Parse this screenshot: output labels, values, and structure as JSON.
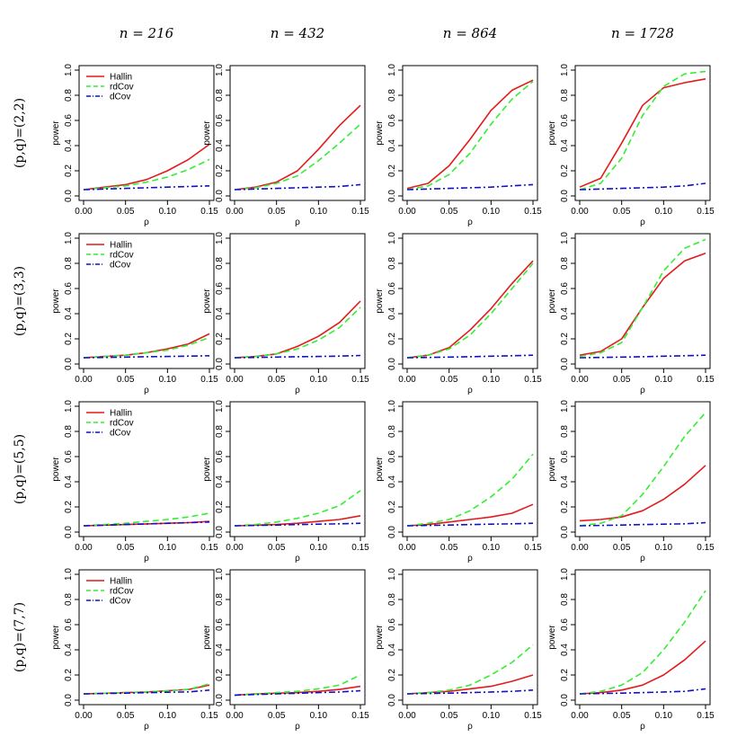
{
  "column_headers": [
    "n = 216",
    "n = 432",
    "n = 864",
    "n = 1728"
  ],
  "row_headers": [
    "(p,q)=(2,2)",
    "(p,q)=(3,3)",
    "(p,q)=(5,5)",
    "(p,q)=(7,7)"
  ],
  "axes": {
    "xlabel": "ρ",
    "ylabel": "power",
    "xlim": [
      0,
      0.15
    ],
    "ylim": [
      0,
      1
    ],
    "xticks": [
      0.0,
      0.05,
      0.1,
      0.15
    ],
    "xtick_labels": [
      "0.00",
      "0.05",
      "0.10",
      "0.15"
    ],
    "yticks": [
      0.0,
      0.2,
      0.4,
      0.6,
      0.8,
      1.0
    ],
    "ytick_labels": [
      "0.0",
      "0.2",
      "0.4",
      "0.6",
      "0.8",
      "1.0"
    ]
  },
  "series_styles": [
    {
      "name": "Hallin",
      "color": "#e31a1c",
      "dash": "solid"
    },
    {
      "name": "rdCov",
      "color": "#33ee33",
      "dash": "dashed"
    },
    {
      "name": "dCov",
      "color": "#1111cc",
      "dash": "dotdash"
    }
  ],
  "chart_data": [
    {
      "type": "line",
      "row": 0,
      "col": 0,
      "legend": true,
      "x": [
        0,
        0.025,
        0.05,
        0.075,
        0.1,
        0.125,
        0.15
      ],
      "series": [
        {
          "name": "Hallin",
          "values": [
            0.05,
            0.07,
            0.09,
            0.13,
            0.2,
            0.29,
            0.41
          ]
        },
        {
          "name": "rdCov",
          "values": [
            0.05,
            0.065,
            0.08,
            0.11,
            0.15,
            0.21,
            0.29
          ]
        },
        {
          "name": "dCov",
          "values": [
            0.05,
            0.055,
            0.06,
            0.065,
            0.07,
            0.075,
            0.08
          ]
        }
      ]
    },
    {
      "type": "line",
      "row": 0,
      "col": 1,
      "legend": false,
      "x": [
        0,
        0.025,
        0.05,
        0.075,
        0.1,
        0.125,
        0.15
      ],
      "series": [
        {
          "name": "Hallin",
          "values": [
            0.05,
            0.07,
            0.11,
            0.2,
            0.37,
            0.56,
            0.72
          ]
        },
        {
          "name": "rdCov",
          "values": [
            0.05,
            0.065,
            0.1,
            0.16,
            0.28,
            0.42,
            0.57
          ]
        },
        {
          "name": "dCov",
          "values": [
            0.05,
            0.055,
            0.06,
            0.065,
            0.07,
            0.075,
            0.09
          ]
        }
      ]
    },
    {
      "type": "line",
      "row": 0,
      "col": 2,
      "legend": false,
      "x": [
        0,
        0.025,
        0.05,
        0.075,
        0.1,
        0.125,
        0.15
      ],
      "series": [
        {
          "name": "Hallin",
          "values": [
            0.06,
            0.1,
            0.24,
            0.45,
            0.68,
            0.84,
            0.92
          ]
        },
        {
          "name": "rdCov",
          "values": [
            0.05,
            0.08,
            0.17,
            0.34,
            0.57,
            0.77,
            0.91
          ]
        },
        {
          "name": "dCov",
          "values": [
            0.05,
            0.055,
            0.06,
            0.065,
            0.07,
            0.08,
            0.09
          ]
        }
      ]
    },
    {
      "type": "line",
      "row": 0,
      "col": 3,
      "legend": false,
      "x": [
        0,
        0.025,
        0.05,
        0.075,
        0.1,
        0.125,
        0.15
      ],
      "series": [
        {
          "name": "Hallin",
          "values": [
            0.07,
            0.14,
            0.42,
            0.72,
            0.86,
            0.9,
            0.93
          ]
        },
        {
          "name": "rdCov",
          "values": [
            0.05,
            0.1,
            0.3,
            0.64,
            0.87,
            0.97,
            0.99
          ]
        },
        {
          "name": "dCov",
          "values": [
            0.05,
            0.055,
            0.06,
            0.065,
            0.07,
            0.08,
            0.1
          ]
        }
      ]
    },
    {
      "type": "line",
      "row": 1,
      "col": 0,
      "legend": true,
      "x": [
        0,
        0.025,
        0.05,
        0.075,
        0.1,
        0.125,
        0.15
      ],
      "series": [
        {
          "name": "Hallin",
          "values": [
            0.05,
            0.06,
            0.07,
            0.09,
            0.12,
            0.16,
            0.24
          ]
        },
        {
          "name": "rdCov",
          "values": [
            0.05,
            0.06,
            0.07,
            0.09,
            0.11,
            0.15,
            0.21
          ]
        },
        {
          "name": "dCov",
          "values": [
            0.05,
            0.052,
            0.055,
            0.058,
            0.06,
            0.063,
            0.066
          ]
        }
      ]
    },
    {
      "type": "line",
      "row": 1,
      "col": 1,
      "legend": false,
      "x": [
        0,
        0.025,
        0.05,
        0.075,
        0.1,
        0.125,
        0.15
      ],
      "series": [
        {
          "name": "Hallin",
          "values": [
            0.05,
            0.06,
            0.08,
            0.14,
            0.22,
            0.33,
            0.5
          ]
        },
        {
          "name": "rdCov",
          "values": [
            0.05,
            0.06,
            0.08,
            0.12,
            0.19,
            0.29,
            0.45
          ]
        },
        {
          "name": "dCov",
          "values": [
            0.05,
            0.052,
            0.055,
            0.058,
            0.06,
            0.063,
            0.068
          ]
        }
      ]
    },
    {
      "type": "line",
      "row": 1,
      "col": 2,
      "legend": false,
      "x": [
        0,
        0.025,
        0.05,
        0.075,
        0.1,
        0.125,
        0.15
      ],
      "series": [
        {
          "name": "Hallin",
          "values": [
            0.05,
            0.07,
            0.13,
            0.27,
            0.44,
            0.64,
            0.82
          ]
        },
        {
          "name": "rdCov",
          "values": [
            0.05,
            0.07,
            0.12,
            0.23,
            0.4,
            0.6,
            0.8
          ]
        },
        {
          "name": "dCov",
          "values": [
            0.05,
            0.052,
            0.055,
            0.058,
            0.062,
            0.066,
            0.07
          ]
        }
      ]
    },
    {
      "type": "line",
      "row": 1,
      "col": 3,
      "legend": false,
      "x": [
        0,
        0.025,
        0.05,
        0.075,
        0.1,
        0.125,
        0.15
      ],
      "series": [
        {
          "name": "Hallin",
          "values": [
            0.07,
            0.1,
            0.2,
            0.45,
            0.68,
            0.82,
            0.88
          ]
        },
        {
          "name": "rdCov",
          "values": [
            0.06,
            0.09,
            0.17,
            0.45,
            0.74,
            0.92,
            0.99
          ]
        },
        {
          "name": "dCov",
          "values": [
            0.05,
            0.052,
            0.055,
            0.058,
            0.062,
            0.066,
            0.07
          ]
        }
      ]
    },
    {
      "type": "line",
      "row": 2,
      "col": 0,
      "legend": true,
      "x": [
        0,
        0.025,
        0.05,
        0.075,
        0.1,
        0.125,
        0.15
      ],
      "series": [
        {
          "name": "Hallin",
          "values": [
            0.05,
            0.055,
            0.06,
            0.065,
            0.07,
            0.075,
            0.085
          ]
        },
        {
          "name": "rdCov",
          "values": [
            0.05,
            0.06,
            0.07,
            0.085,
            0.1,
            0.12,
            0.15
          ]
        },
        {
          "name": "dCov",
          "values": [
            0.05,
            0.055,
            0.06,
            0.065,
            0.07,
            0.075,
            0.08
          ]
        }
      ]
    },
    {
      "type": "line",
      "row": 2,
      "col": 1,
      "legend": false,
      "x": [
        0,
        0.025,
        0.05,
        0.075,
        0.1,
        0.125,
        0.15
      ],
      "series": [
        {
          "name": "Hallin",
          "values": [
            0.05,
            0.055,
            0.06,
            0.07,
            0.085,
            0.1,
            0.13
          ]
        },
        {
          "name": "rdCov",
          "values": [
            0.05,
            0.06,
            0.08,
            0.11,
            0.15,
            0.21,
            0.33
          ]
        },
        {
          "name": "dCov",
          "values": [
            0.05,
            0.053,
            0.056,
            0.06,
            0.063,
            0.066,
            0.07
          ]
        }
      ]
    },
    {
      "type": "line",
      "row": 2,
      "col": 2,
      "legend": false,
      "x": [
        0,
        0.025,
        0.05,
        0.075,
        0.1,
        0.125,
        0.15
      ],
      "series": [
        {
          "name": "Hallin",
          "values": [
            0.05,
            0.06,
            0.08,
            0.1,
            0.12,
            0.15,
            0.22
          ]
        },
        {
          "name": "rdCov",
          "values": [
            0.05,
            0.07,
            0.1,
            0.17,
            0.28,
            0.42,
            0.62
          ]
        },
        {
          "name": "dCov",
          "values": [
            0.05,
            0.053,
            0.056,
            0.06,
            0.063,
            0.066,
            0.07
          ]
        }
      ]
    },
    {
      "type": "line",
      "row": 2,
      "col": 3,
      "legend": false,
      "x": [
        0,
        0.025,
        0.05,
        0.075,
        0.1,
        0.125,
        0.15
      ],
      "series": [
        {
          "name": "Hallin",
          "values": [
            0.09,
            0.1,
            0.12,
            0.17,
            0.26,
            0.38,
            0.53
          ]
        },
        {
          "name": "rdCov",
          "values": [
            0.05,
            0.07,
            0.13,
            0.3,
            0.52,
            0.76,
            0.95
          ]
        },
        {
          "name": "dCov",
          "values": [
            0.05,
            0.053,
            0.056,
            0.06,
            0.063,
            0.066,
            0.075
          ]
        }
      ]
    },
    {
      "type": "line",
      "row": 3,
      "col": 0,
      "legend": true,
      "x": [
        0,
        0.025,
        0.05,
        0.075,
        0.1,
        0.125,
        0.15
      ],
      "series": [
        {
          "name": "Hallin",
          "values": [
            0.05,
            0.055,
            0.06,
            0.065,
            0.075,
            0.085,
            0.12
          ]
        },
        {
          "name": "rdCov",
          "values": [
            0.05,
            0.055,
            0.06,
            0.065,
            0.075,
            0.085,
            0.13
          ]
        },
        {
          "name": "dCov",
          "values": [
            0.05,
            0.053,
            0.056,
            0.06,
            0.063,
            0.066,
            0.08
          ]
        }
      ]
    },
    {
      "type": "line",
      "row": 3,
      "col": 1,
      "legend": false,
      "x": [
        0,
        0.025,
        0.05,
        0.075,
        0.1,
        0.125,
        0.15
      ],
      "series": [
        {
          "name": "Hallin",
          "values": [
            0.04,
            0.05,
            0.055,
            0.06,
            0.07,
            0.085,
            0.11
          ]
        },
        {
          "name": "rdCov",
          "values": [
            0.04,
            0.05,
            0.06,
            0.07,
            0.09,
            0.12,
            0.2
          ]
        },
        {
          "name": "dCov",
          "values": [
            0.04,
            0.045,
            0.05,
            0.055,
            0.06,
            0.065,
            0.075
          ]
        }
      ]
    },
    {
      "type": "line",
      "row": 3,
      "col": 2,
      "legend": false,
      "x": [
        0,
        0.025,
        0.05,
        0.075,
        0.1,
        0.125,
        0.15
      ],
      "series": [
        {
          "name": "Hallin",
          "values": [
            0.05,
            0.06,
            0.07,
            0.09,
            0.11,
            0.15,
            0.2
          ]
        },
        {
          "name": "rdCov",
          "values": [
            0.05,
            0.06,
            0.08,
            0.12,
            0.2,
            0.3,
            0.44
          ]
        },
        {
          "name": "dCov",
          "values": [
            0.05,
            0.053,
            0.056,
            0.06,
            0.065,
            0.07,
            0.08
          ]
        }
      ]
    },
    {
      "type": "line",
      "row": 3,
      "col": 3,
      "legend": false,
      "x": [
        0,
        0.025,
        0.05,
        0.075,
        0.1,
        0.125,
        0.15
      ],
      "series": [
        {
          "name": "Hallin",
          "values": [
            0.05,
            0.06,
            0.08,
            0.12,
            0.2,
            0.32,
            0.47
          ]
        },
        {
          "name": "rdCov",
          "values": [
            0.05,
            0.07,
            0.12,
            0.22,
            0.4,
            0.62,
            0.87
          ]
        },
        {
          "name": "dCov",
          "values": [
            0.05,
            0.053,
            0.056,
            0.06,
            0.065,
            0.07,
            0.09
          ]
        }
      ]
    }
  ]
}
